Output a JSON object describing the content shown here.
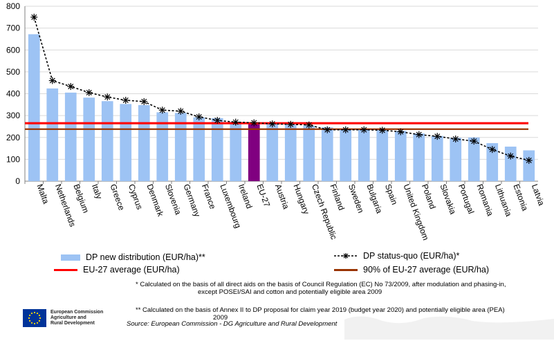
{
  "chart_data": {
    "type": "bar",
    "title": "",
    "xlabel": "",
    "ylabel": "",
    "ylim": [
      0,
      800
    ],
    "yticks": [
      0,
      100,
      200,
      300,
      400,
      500,
      600,
      700,
      800
    ],
    "categories": [
      "Malta",
      "Netherlands",
      "Belgium",
      "Italy",
      "Greece",
      "Cyprus",
      "Denmark",
      "Slovenia",
      "Germany",
      "France",
      "Luxembourg",
      "Ireland",
      "EU-27",
      "Austria",
      "Hungary",
      "Czech Republic",
      "Finland",
      "Sweden",
      "Bulgaria",
      "Spain",
      "United Kingdom",
      "Poland",
      "Slovakia",
      "Portugal",
      "Romania",
      "Lithuania",
      "Estonia",
      "Latvia"
    ],
    "highlight_category": "EU-27",
    "series": [
      {
        "name": "DP new distribution (EUR/ha)**",
        "type": "bar",
        "color": "#9dc3f4",
        "values": [
          672,
          424,
          405,
          382,
          366,
          353,
          348,
          315,
          312,
          292,
          288,
          272,
          265,
          262,
          258,
          254,
          246,
          240,
          236,
          233,
          230,
          218,
          207,
          198,
          200,
          174,
          158,
          141
        ]
      },
      {
        "name": "DP status-quo (EUR/ha)*",
        "type": "line",
        "color": "#000000",
        "values": [
          750,
          460,
          433,
          405,
          385,
          370,
          364,
          325,
          320,
          294,
          278,
          270,
          267,
          262,
          260,
          257,
          235,
          235,
          235,
          233,
          226,
          213,
          205,
          193,
          183,
          145,
          115,
          95
        ]
      }
    ],
    "reference_lines": [
      {
        "name": "EU-27 average (EUR/ha)",
        "value": 265,
        "color": "#ff0000"
      },
      {
        "name": "90% of EU-27 average (EUR/ha)",
        "value": 238,
        "color": "#993300"
      }
    ]
  },
  "colors": {
    "bar": "#9dc3f4",
    "highlight": "#800080",
    "avg": "#ff0000",
    "avg90": "#993300",
    "flag": "#003399"
  },
  "legend": {
    "bar_label": "DP new distribution (EUR/ha)**",
    "dash_label": "DP status-quo (EUR/ha)*",
    "avg_label": "EU-27 average (EUR/ha)",
    "avg90_label": "90% of EU-27 average (EUR/ha)"
  },
  "notes": {
    "note1_line1": "* Calculated on the basis of all direct aids on the basis of Council Regulation (EC) No 73/2009, after modulation and phasing-in,",
    "note1_line2": "except POSEI/SAI and cotton and potentially eligible area 2009",
    "note2_line1": "** Calculated on the basis of Annex II to DP proposal for claim year 2019 (budget year 2020) and potentially eligible area (PEA)",
    "note2_line2": "2009",
    "source": "Source: European Commission - DG Agriculture and Rural Development"
  },
  "logo": {
    "line1": "European Commission",
    "line2": "Agriculture and",
    "line3": "Rural Development"
  }
}
